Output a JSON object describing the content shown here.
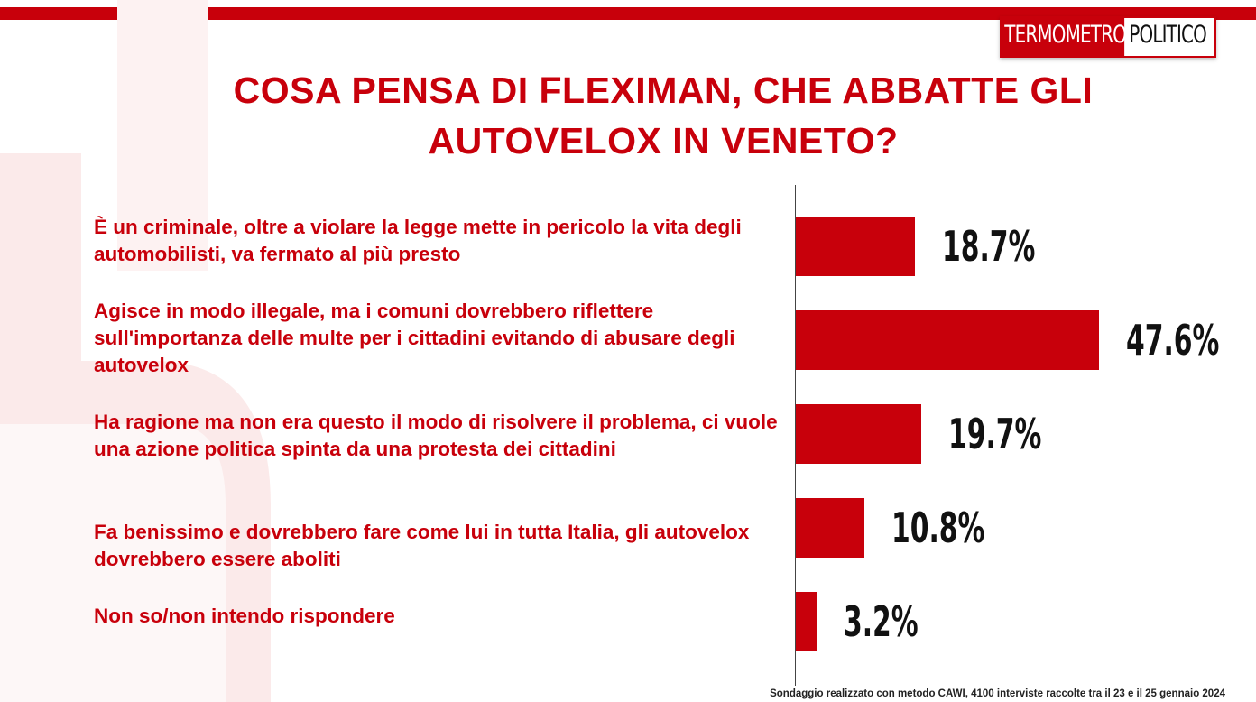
{
  "header": {
    "logo_part1": "TERMOMETRO",
    "logo_part2": "POLITICO"
  },
  "colors": {
    "accent": "#c8000b",
    "text_dark": "#111111"
  },
  "footer": {
    "note": "Sondaggio realizzato con metodo CAWI, 4100 interviste raccolte tra il 23 e il 25 gennaio 2024"
  },
  "chart_data": {
    "type": "bar",
    "orientation": "horizontal",
    "title": "COSA PENSA DI FLEXIMAN, CHE ABBATTE GLI\nAUTOVELOX IN VENETO?",
    "categories": [
      "È un criminale, oltre a violare la legge mette in pericolo la vita degli automobilisti, va fermato al più presto",
      "Agisce in modo illegale, ma i comuni dovrebbero riflettere sull'importanza delle multe per i cittadini evitando di abusare degli autovelox",
      "Ha ragione ma non era questo il modo di risolvere il problema, ci vuole una azione politica spinta da una protesta dei cittadini",
      "Fa benissimo e dovrebbero fare come lui in tutta Italia, gli autovelox dovrebbero essere aboliti",
      "Non so/non intendo rispondere"
    ],
    "values": [
      18.7,
      47.6,
      19.7,
      10.8,
      3.2
    ],
    "value_labels": [
      "18.7%",
      "47.6%",
      "19.7%",
      "10.8%",
      "3.2%"
    ],
    "unit": "%",
    "xlim": [
      0,
      47.6
    ],
    "grid": false,
    "legend": "none"
  }
}
